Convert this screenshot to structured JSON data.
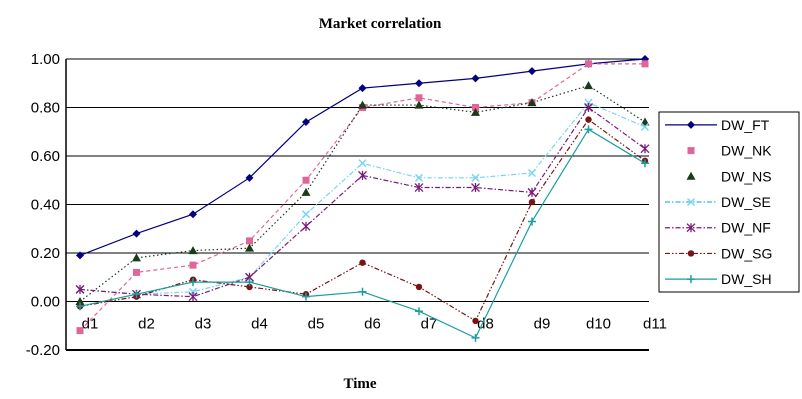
{
  "chart_data": {
    "type": "line",
    "title": "Market correlation",
    "xlabel": "Time",
    "ylabel": "",
    "categories": [
      "d1",
      "d2",
      "d3",
      "d4",
      "d5",
      "d6",
      "d7",
      "d8",
      "d9",
      "d10",
      "d11"
    ],
    "ylim": [
      -0.2,
      1.0
    ],
    "yticks": [
      "-0.20",
      "0.00",
      "0.20",
      "0.40",
      "0.60",
      "0.80",
      "1.00"
    ],
    "grid": "horizontal",
    "legend_position": "right",
    "series": [
      {
        "name": "DW_FT",
        "color": "#000080",
        "style": "solid",
        "marker": "diamond",
        "values": [
          0.19,
          0.28,
          0.36,
          0.51,
          0.74,
          0.88,
          0.9,
          0.92,
          0.95,
          0.98,
          1.0
        ]
      },
      {
        "name": "DW_NK",
        "color": "#e0669a",
        "style": "dash",
        "marker": "square",
        "values": [
          -0.12,
          0.12,
          0.15,
          0.25,
          0.5,
          0.8,
          0.84,
          0.8,
          0.82,
          0.98,
          0.98
        ]
      },
      {
        "name": "DW_NS",
        "color": "#1a3a1a",
        "style": "dot",
        "marker": "triangle",
        "values": [
          0.0,
          0.18,
          0.21,
          0.22,
          0.45,
          0.81,
          0.81,
          0.78,
          0.82,
          0.89,
          0.74
        ]
      },
      {
        "name": "DW_SE",
        "color": "#7ad4f2",
        "style": "dashdot",
        "marker": "x",
        "values": [
          0.05,
          0.03,
          0.04,
          0.1,
          0.36,
          0.57,
          0.51,
          0.51,
          0.53,
          0.82,
          0.72
        ]
      },
      {
        "name": "DW_NF",
        "color": "#7a1a7a",
        "style": "dashdot",
        "marker": "star",
        "values": [
          0.05,
          0.03,
          0.02,
          0.1,
          0.31,
          0.52,
          0.47,
          0.47,
          0.45,
          0.8,
          0.63
        ]
      },
      {
        "name": "DW_SG",
        "color": "#7a1414",
        "style": "dashdotdot",
        "marker": "circle",
        "values": [
          -0.02,
          0.02,
          0.09,
          0.06,
          0.03,
          0.16,
          0.06,
          -0.08,
          0.41,
          0.75,
          0.58
        ]
      },
      {
        "name": "DW_SH",
        "color": "#1a9e9e",
        "style": "solid",
        "marker": "plus",
        "values": [
          -0.02,
          0.03,
          0.08,
          0.08,
          0.02,
          0.04,
          -0.04,
          -0.15,
          0.33,
          0.71,
          0.57
        ]
      }
    ]
  }
}
